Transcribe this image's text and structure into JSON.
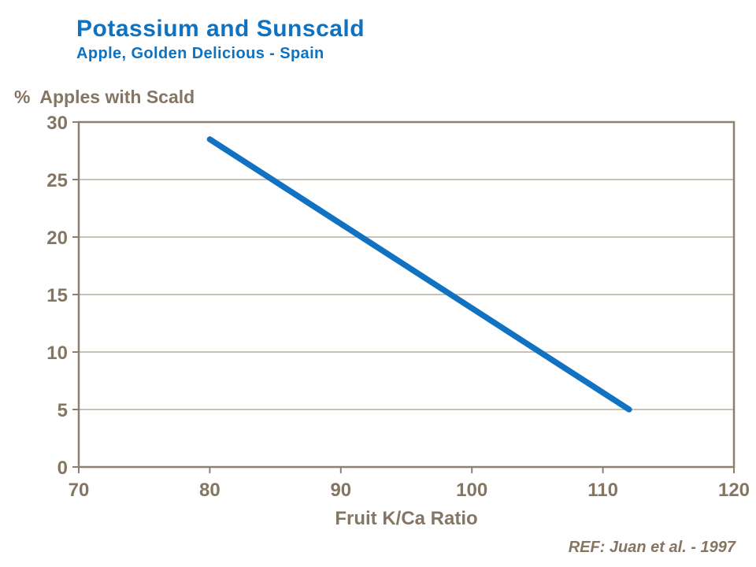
{
  "header": {
    "title": "Potassium and Sunscald",
    "subtitle": "Apple, Golden Delicious - Spain"
  },
  "footer": {
    "ref": "REF: Juan et al. - 1997"
  },
  "colors": {
    "accent_blue": "#0e72c0",
    "line_blue": "#1272c2",
    "text_taupe": "#857663",
    "axis_taupe": "#8e8070",
    "grid_taupe": "#b7ac9d"
  },
  "chart_data": {
    "type": "line",
    "title": "Potassium and Sunscald",
    "subtitle": "Apple, Golden Delicious - Spain",
    "xlabel": "Fruit K/Ca Ratio",
    "ylabel": "%  Apples with Scald",
    "xlim": [
      70,
      120
    ],
    "ylim": [
      0,
      30
    ],
    "x_ticks": [
      70,
      80,
      90,
      100,
      110,
      120
    ],
    "y_ticks": [
      0,
      5,
      10,
      15,
      20,
      25,
      30
    ],
    "grid": "horizontal",
    "legend_position": "none",
    "frame": true,
    "series": [
      {
        "name": "% apples with scald vs fruit K/Ca ratio",
        "points": [
          {
            "x": 80,
            "y": 28.5
          },
          {
            "x": 112,
            "y": 5
          }
        ]
      }
    ],
    "annotation": "REF: Juan et al. - 1997"
  }
}
